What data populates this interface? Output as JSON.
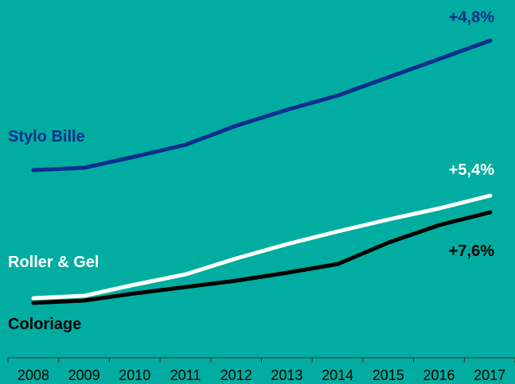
{
  "chart_data": {
    "type": "line",
    "categories": [
      "2008",
      "2009",
      "2010",
      "2011",
      "2012",
      "2013",
      "2014",
      "2015",
      "2016",
      "2017"
    ],
    "series": [
      {
        "name": "Stylo Bille",
        "color": "#0B2F8C",
        "growth": "+4,8%",
        "values": [
          214,
          211,
          197,
          182,
          158,
          138,
          120,
          97,
          74,
          51
        ]
      },
      {
        "name": "Roller & Gel",
        "color": "#FFFFFF",
        "growth": "+5,4%",
        "values": [
          375,
          372,
          358,
          345,
          325,
          307,
          291,
          276,
          262,
          246
        ]
      },
      {
        "name": "Coloriage",
        "color": "#000000",
        "growth": "+7,6%",
        "values": [
          381,
          378,
          369,
          361,
          353,
          343,
          332,
          305,
          283,
          267
        ]
      }
    ],
    "ylim": [
      450,
      0
    ],
    "grid": false,
    "legend": "direct-labels"
  },
  "colors": {
    "background": "#00ADA0",
    "axis": "#333333",
    "tick_text": "#000000"
  }
}
